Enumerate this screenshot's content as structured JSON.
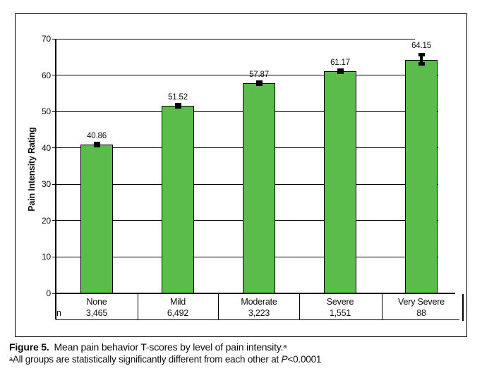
{
  "chart_data": {
    "type": "bar",
    "categories": [
      "None",
      "Mild",
      "Moderate",
      "Severe",
      "Very Severe"
    ],
    "values": [
      40.86,
      51.52,
      57.87,
      61.17,
      64.15
    ],
    "value_labels": [
      "40.86",
      "51.52",
      "57.87",
      "61.17",
      "64.15"
    ],
    "n_row_label": "n",
    "n_values": [
      "3,465",
      "6,492",
      "3,223",
      "1,551",
      "88"
    ],
    "ylabel": "Pain Intensity Rating",
    "xlabel": "",
    "title": "",
    "ylim": [
      0,
      70
    ],
    "yticks": [
      0,
      10,
      20,
      30,
      40,
      50,
      60,
      70
    ],
    "grid": true,
    "legend": false,
    "bar_color": "#5bbc4b",
    "bar_border_color": "#000000",
    "error_marker_color": "#000000"
  },
  "caption": {
    "label": "Figure 5.",
    "text": "Mean pain behavior T-scores by level of pain intensity.",
    "sup": "a"
  },
  "footnote": {
    "sup": "a",
    "text_before": "All groups are statistically significantly different from each other at ",
    "p_symbol": "P",
    "text_after": "<0.0001"
  }
}
